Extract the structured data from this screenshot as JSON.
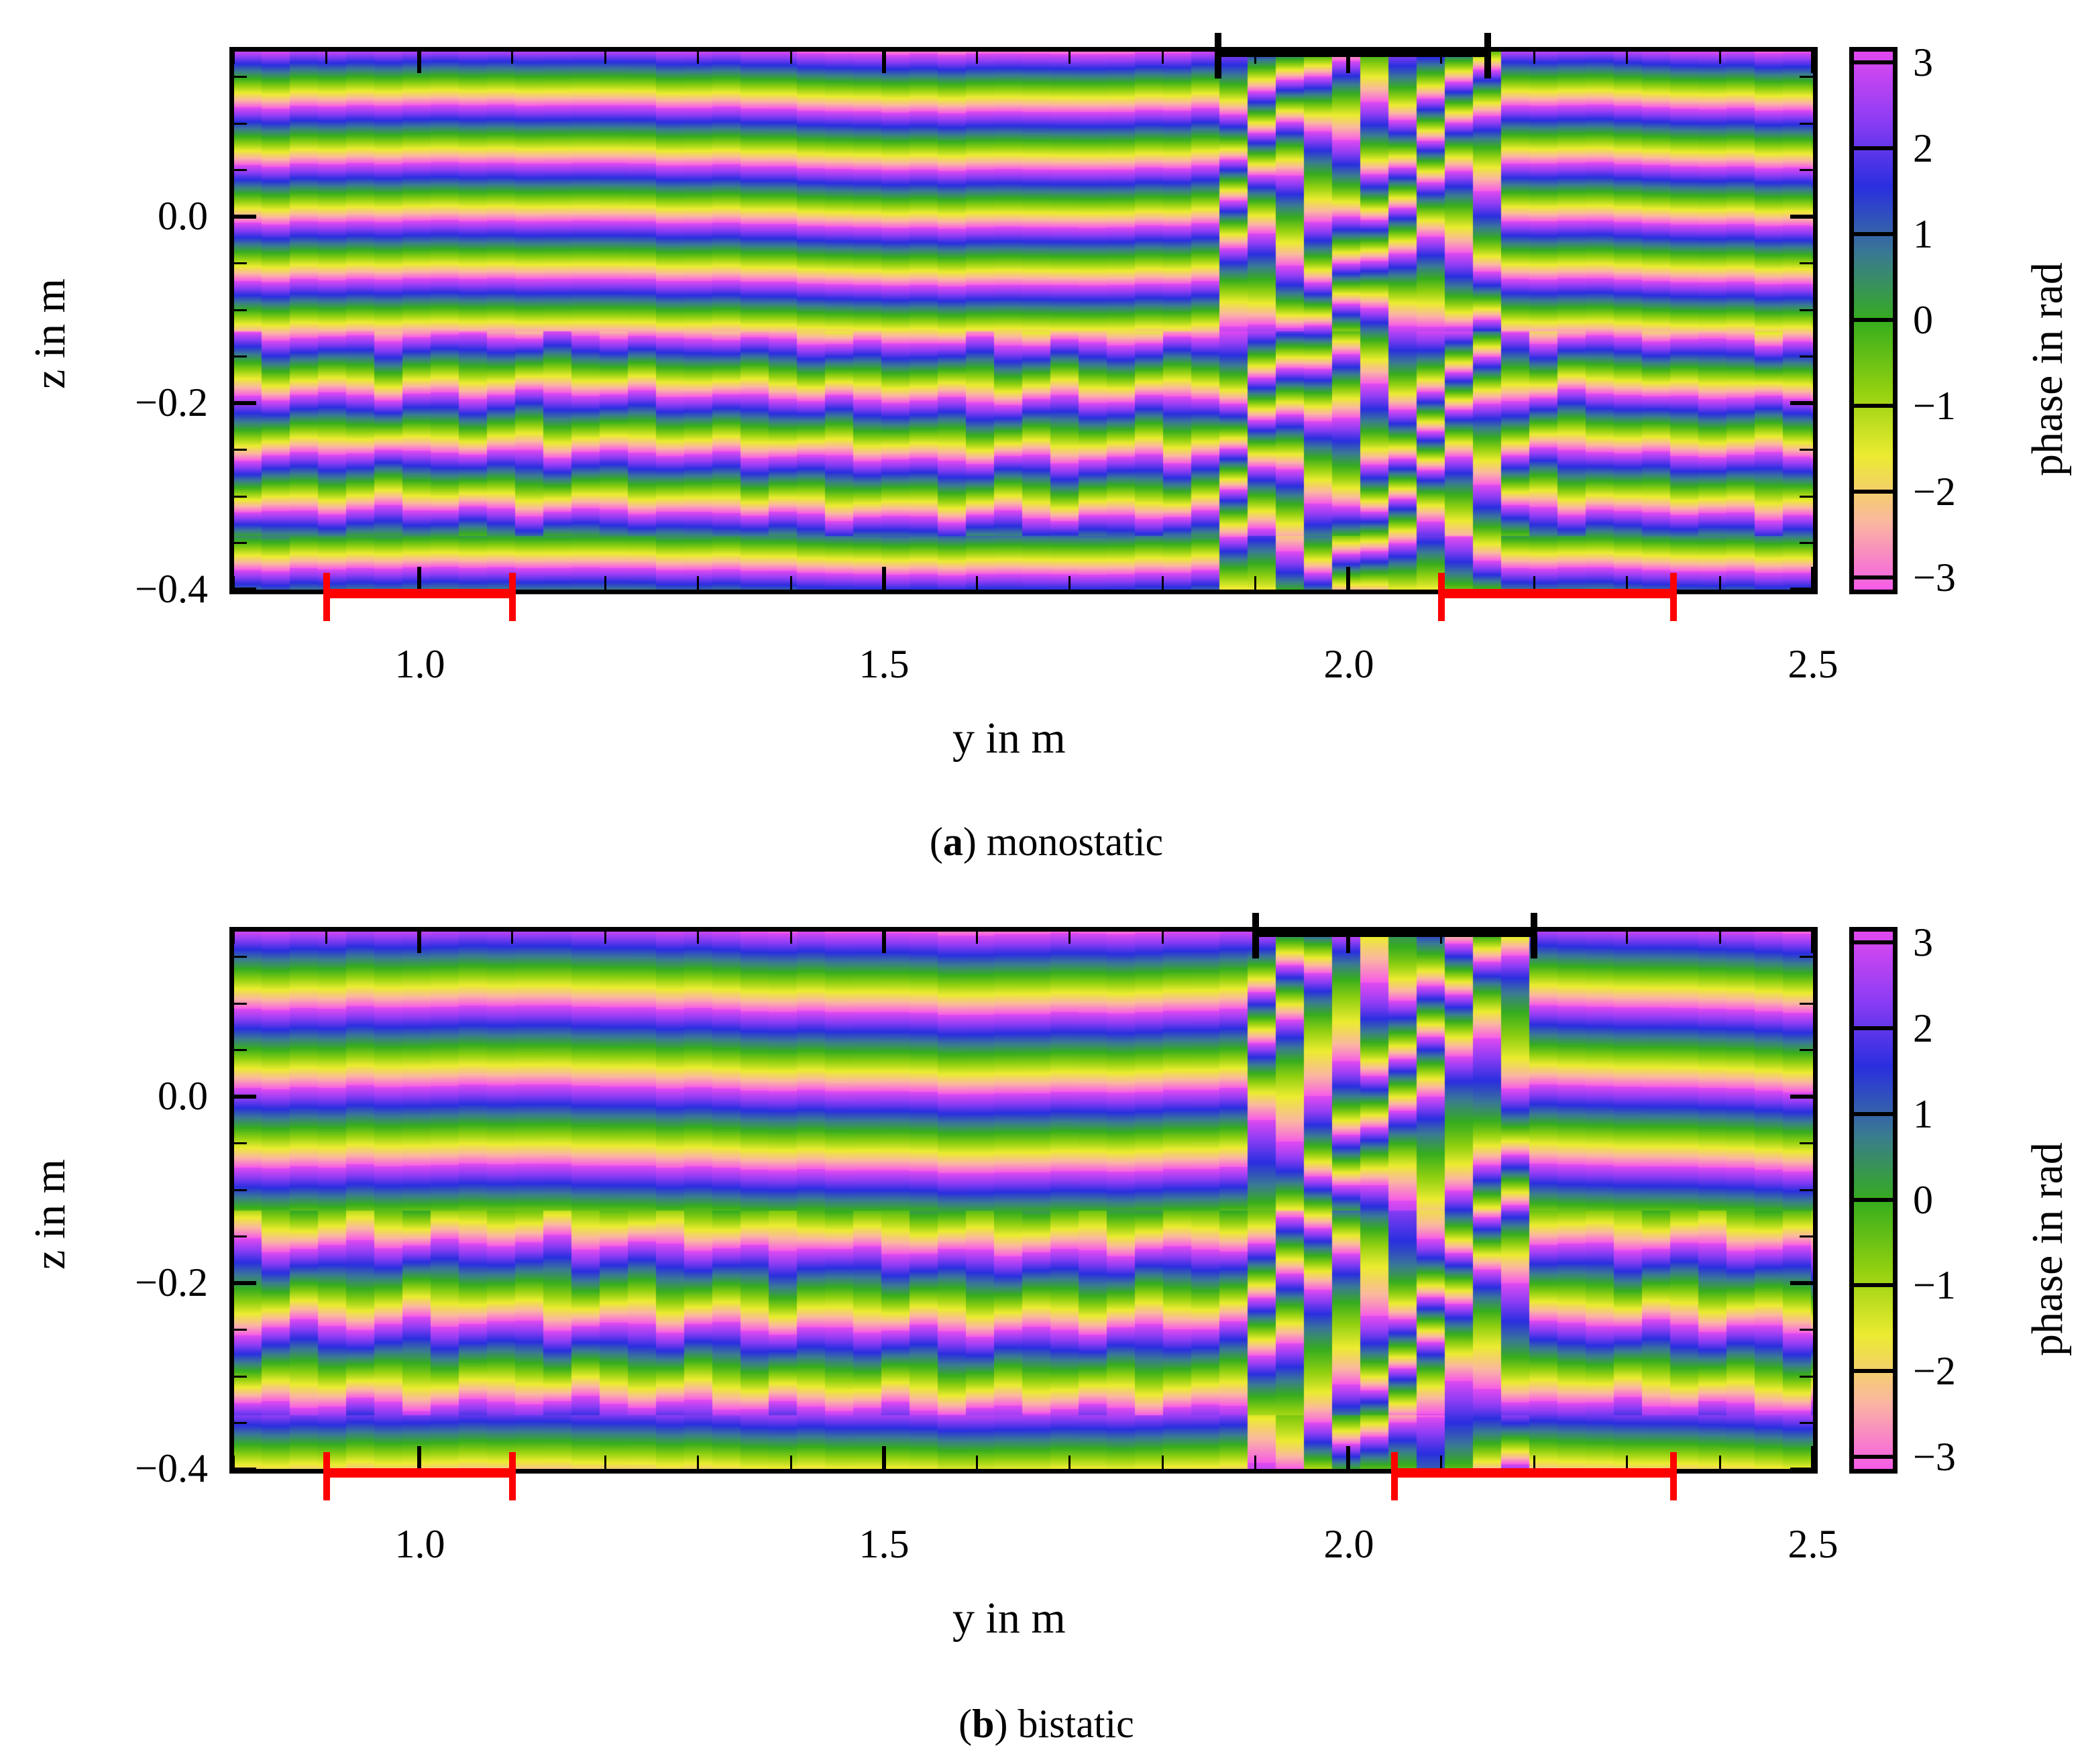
{
  "figure": {
    "panels": [
      {
        "id": "a",
        "caption_label": "a",
        "caption_text": "monostatic",
        "xlabel": "y in m",
        "ylabel": "z in m",
        "colorbar_label": "phase in rad",
        "xticks": [
          "1.0",
          "1.5",
          "2.0",
          "2.5"
        ],
        "yticks": [
          "0.0",
          "−0.2",
          "−0.4"
        ],
        "cticks": [
          "3",
          "2",
          "1",
          "0",
          "−1",
          "−2",
          "−3"
        ],
        "black_bar": {
          "y_start": 1.86,
          "y_end": 2.15,
          "color": "#000000"
        },
        "red_bars": [
          {
            "y_start": 0.9,
            "y_end": 1.1,
            "color": "#ff0000"
          },
          {
            "y_start": 2.1,
            "y_end": 2.35,
            "color": "#ff0000"
          }
        ]
      },
      {
        "id": "b",
        "caption_label": "b",
        "caption_text": "bistatic",
        "xlabel": "y in m",
        "ylabel": "z in m",
        "colorbar_label": "phase in rad",
        "xticks": [
          "1.0",
          "1.5",
          "2.0",
          "2.5"
        ],
        "yticks": [
          "0.0",
          "−0.2",
          "−0.4"
        ],
        "cticks": [
          "3",
          "2",
          "1",
          "0",
          "−1",
          "−2",
          "−3"
        ],
        "black_bar": {
          "y_start": 1.9,
          "y_end": 2.2,
          "color": "#000000"
        },
        "red_bars": [
          {
            "y_start": 0.9,
            "y_end": 1.1,
            "color": "#ff0000"
          },
          {
            "y_start": 2.05,
            "y_end": 2.35,
            "color": "#ff0000"
          }
        ]
      }
    ]
  },
  "chart_data": [
    {
      "type": "heatmap",
      "title": "(a) monostatic",
      "xlabel": "y in m",
      "ylabel": "z in m",
      "colorbar_label": "phase in rad",
      "xlim": [
        0.8,
        2.5
      ],
      "ylim": [
        -0.4,
        0.18
      ],
      "clim": [
        -3.14159,
        3.14159
      ],
      "xticks": [
        1.0,
        1.5,
        2.0,
        2.5
      ],
      "yticks": [
        0.0,
        -0.2,
        -0.4
      ],
      "cticks": [
        -3,
        -2,
        -1,
        0,
        1,
        2,
        3
      ],
      "colormap": [
        "#f65ce8",
        "#fbb8a0",
        "#ecec30",
        "#8fd010",
        "#36ad1e",
        "#3a7a94",
        "#2a2fe0",
        "#8f3df5",
        "#e14af0"
      ],
      "description": "Wrapped phase stripes: roughly horizontal fringes (period approx 0.062 m in z) across y; disturbed region between y=1.86 and 2.15 m near the top; phase discontinuities near z=0.09 and z=-0.30.",
      "fringe_period_m": 0.062,
      "annotations": {
        "black_bar_y": [
          1.86,
          2.15
        ],
        "red_bars_y": [
          [
            0.9,
            1.1
          ],
          [
            2.1,
            2.35
          ]
        ]
      },
      "grid": false,
      "legend": "colorbar right"
    },
    {
      "type": "heatmap",
      "title": "(b) bistatic",
      "xlabel": "y in m",
      "ylabel": "z in m",
      "colorbar_label": "phase in rad",
      "xlim": [
        0.8,
        2.5
      ],
      "ylim": [
        -0.4,
        0.18
      ],
      "clim": [
        -3.14159,
        3.14159
      ],
      "xticks": [
        1.0,
        1.5,
        2.0,
        2.5
      ],
      "yticks": [
        0.0,
        -0.2,
        -0.4
      ],
      "cticks": [
        -3,
        -2,
        -1,
        0,
        1,
        2,
        3
      ],
      "colormap": [
        "#f65ce8",
        "#fbb8a0",
        "#ecec30",
        "#8fd010",
        "#36ad1e",
        "#3a7a94",
        "#2a2fe0",
        "#8f3df5",
        "#e14af0"
      ],
      "description": "Wrapped phase stripes with period approx 0.085 m in z; irregular region between z=-0.05 and -0.15 and between z=-0.28 and -0.36; disturbed area between y=1.9 and 2.2 m.",
      "fringe_period_m": 0.085,
      "annotations": {
        "black_bar_y": [
          1.9,
          2.2
        ],
        "red_bars_y": [
          [
            0.9,
            1.1
          ],
          [
            2.05,
            2.35
          ]
        ]
      },
      "grid": false,
      "legend": "colorbar right"
    }
  ]
}
